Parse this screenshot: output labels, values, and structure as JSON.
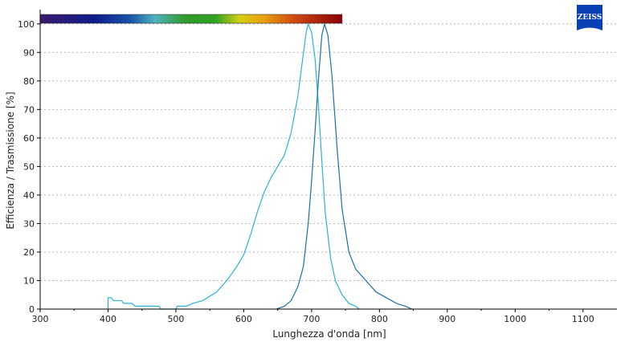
{
  "brand": {
    "logo_text": "ZEISS",
    "logo_color": "#0a3fb5"
  },
  "chart_data": {
    "type": "line",
    "xlabel": "Lunghezza d'onda [nm]",
    "ylabel": "Efficienza / Trasmissione [%]",
    "xlim": [
      300,
      1150
    ],
    "ylim": [
      0,
      105
    ],
    "xticks": [
      "300",
      "400",
      "500",
      "600",
      "700",
      "800",
      "900",
      "1000",
      "1100"
    ],
    "yticks": [
      "0",
      "10",
      "20",
      "30",
      "40",
      "50",
      "60",
      "70",
      "80",
      "90",
      "100"
    ],
    "grid": "horizontal dotted",
    "spectrum_bar": {
      "range": [
        300,
        745
      ]
    },
    "series": [
      {
        "color": "#29b3d6",
        "points": [
          [
            400,
            0
          ],
          [
            400,
            4
          ],
          [
            405,
            4
          ],
          [
            408,
            3
          ],
          [
            420,
            3
          ],
          [
            423,
            2
          ],
          [
            435,
            2
          ],
          [
            440,
            1
          ],
          [
            475,
            1
          ],
          [
            478,
            0
          ],
          [
            500,
            0
          ],
          [
            502,
            1
          ],
          [
            515,
            1
          ],
          [
            525,
            2
          ],
          [
            540,
            3
          ],
          [
            560,
            6
          ],
          [
            575,
            10
          ],
          [
            590,
            15
          ],
          [
            600,
            19
          ],
          [
            610,
            26
          ],
          [
            620,
            34
          ],
          [
            630,
            41
          ],
          [
            640,
            46
          ],
          [
            650,
            50
          ],
          [
            660,
            54
          ],
          [
            670,
            62
          ],
          [
            680,
            75
          ],
          [
            687,
            88
          ],
          [
            692,
            97
          ],
          [
            695,
            100
          ],
          [
            700,
            97
          ],
          [
            705,
            88
          ],
          [
            710,
            72
          ],
          [
            715,
            52
          ],
          [
            720,
            34
          ],
          [
            728,
            18
          ],
          [
            735,
            10
          ],
          [
            745,
            5
          ],
          [
            755,
            2
          ],
          [
            765,
            1
          ],
          [
            770,
            0
          ]
        ]
      },
      {
        "color": "#1b6fa8",
        "points": [
          [
            648,
            0
          ],
          [
            660,
            1
          ],
          [
            670,
            3
          ],
          [
            680,
            8
          ],
          [
            688,
            15
          ],
          [
            695,
            30
          ],
          [
            700,
            45
          ],
          [
            705,
            62
          ],
          [
            710,
            80
          ],
          [
            715,
            96
          ],
          [
            719,
            100
          ],
          [
            724,
            96
          ],
          [
            730,
            82
          ],
          [
            738,
            55
          ],
          [
            745,
            35
          ],
          [
            755,
            20
          ],
          [
            765,
            14
          ],
          [
            780,
            10
          ],
          [
            795,
            6
          ],
          [
            810,
            4
          ],
          [
            825,
            2
          ],
          [
            838,
            1
          ],
          [
            848,
            0
          ]
        ]
      }
    ]
  }
}
